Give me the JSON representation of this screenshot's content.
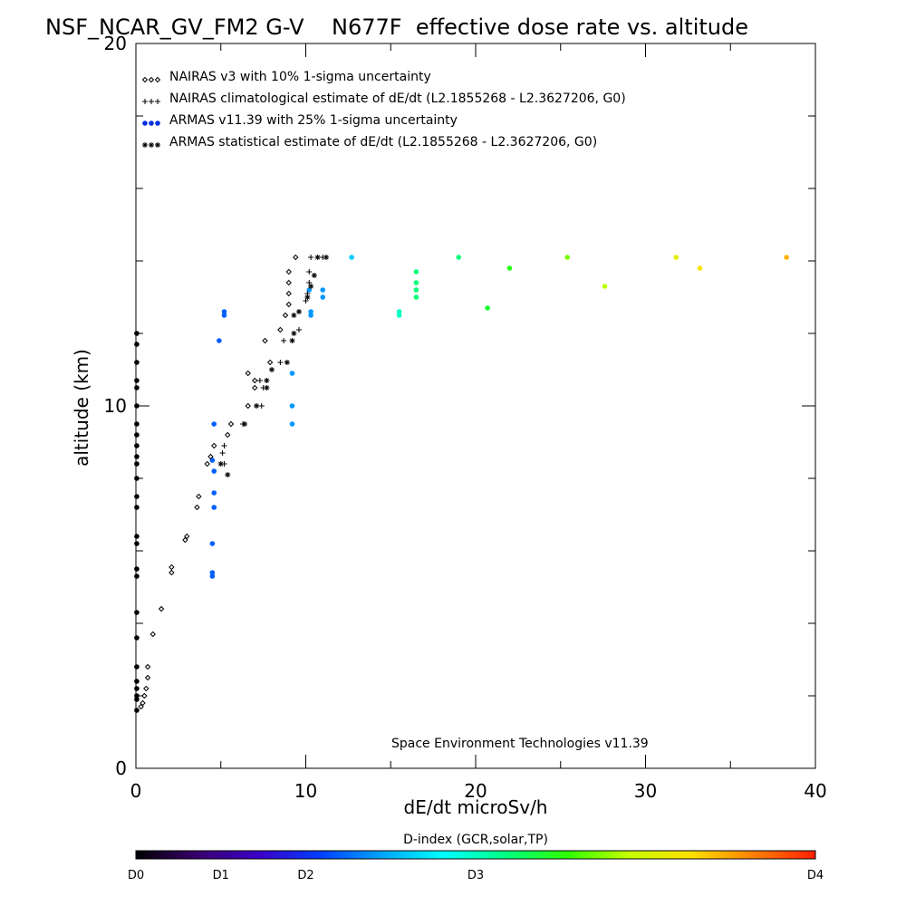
{
  "figure": {
    "title": "NSF_NCAR_GV_FM2 G-V    N677F  effective dose rate vs. altitude",
    "credit": "Space Environment Technologies v11.39",
    "colorbar_label": "D-index (GCR,solar,TP)",
    "colorbar_ticks": [
      "D0",
      "D1",
      "D2",
      "D3",
      "D4"
    ],
    "colorbar_colors": [
      "#000000",
      "#3a006e",
      "#3b00c8",
      "#0040ff",
      "#00a8ff",
      "#00ffff",
      "#00ff80",
      "#30ff00",
      "#c8ff00",
      "#ffe000",
      "#ff8000",
      "#ff2000"
    ]
  },
  "chart_data": {
    "type": "scatter",
    "xlabel": "dE/dt microSv/h",
    "ylabel": "altitude (km)",
    "xlim": [
      0,
      40
    ],
    "ylim": [
      0,
      20
    ],
    "xticks": [
      "0",
      "10",
      "20",
      "30",
      "40"
    ],
    "yticks": [
      "0",
      "10",
      "20"
    ],
    "legend_position": "top-left",
    "series": [
      {
        "name": "NAIRAS v3 with 10% 1-sigma uncertainty",
        "marker": "diamond",
        "color": "#000000",
        "points": [
          [
            0.3,
            1.7
          ],
          [
            0.4,
            1.8
          ],
          [
            0.5,
            2.0
          ],
          [
            0.6,
            2.2
          ],
          [
            0.7,
            2.5
          ],
          [
            0.7,
            2.8
          ],
          [
            1.0,
            3.7
          ],
          [
            1.5,
            4.4
          ],
          [
            2.1,
            5.4
          ],
          [
            2.1,
            5.55
          ],
          [
            2.9,
            6.3
          ],
          [
            3.0,
            6.4
          ],
          [
            3.6,
            7.2
          ],
          [
            3.7,
            7.5
          ],
          [
            4.2,
            8.4
          ],
          [
            4.4,
            8.6
          ],
          [
            4.6,
            8.9
          ],
          [
            5.4,
            9.2
          ],
          [
            5.6,
            9.5
          ],
          [
            6.6,
            10.0
          ],
          [
            7.0,
            10.5
          ],
          [
            7.0,
            10.7
          ],
          [
            6.6,
            10.9
          ],
          [
            7.9,
            11.2
          ],
          [
            7.6,
            11.8
          ],
          [
            8.5,
            12.1
          ],
          [
            8.8,
            12.5
          ],
          [
            9.0,
            12.8
          ],
          [
            9.0,
            13.1
          ],
          [
            9.0,
            13.4
          ],
          [
            9.0,
            13.7
          ],
          [
            9.4,
            14.1
          ]
        ]
      },
      {
        "name": "NAIRAS climatological estimate of dE/dt (L2.1855268 - L2.3627206, G0)",
        "marker": "plus",
        "color": "#000000",
        "points": [
          [
            5.1,
            8.7
          ],
          [
            5.2,
            8.9
          ],
          [
            5.2,
            8.4
          ],
          [
            6.3,
            9.5
          ],
          [
            7.4,
            10.0
          ],
          [
            7.5,
            10.5
          ],
          [
            7.3,
            10.7
          ],
          [
            8.5,
            11.2
          ],
          [
            8.7,
            11.8
          ],
          [
            9.6,
            12.1
          ],
          [
            9.6,
            12.6
          ],
          [
            10.0,
            12.9
          ],
          [
            10.1,
            13.1
          ],
          [
            10.2,
            13.4
          ],
          [
            10.2,
            13.7
          ],
          [
            10.3,
            14.1
          ],
          [
            11.0,
            14.1
          ]
        ]
      },
      {
        "name": "ARMAS v11.39 with 25% 1-sigma uncertainty",
        "marker": "dot",
        "color_by": "D-index",
        "points": [
          [
            0.05,
            1.6,
            0.0
          ],
          [
            0.05,
            1.9,
            0.0
          ],
          [
            0.05,
            2.0,
            0.0
          ],
          [
            0.05,
            2.2,
            0.0
          ],
          [
            0.05,
            2.4,
            0.0
          ],
          [
            0.05,
            2.8,
            0.0
          ],
          [
            0.05,
            3.6,
            0.0
          ],
          [
            0.05,
            4.3,
            0.0
          ],
          [
            0.05,
            5.3,
            0.0
          ],
          [
            0.05,
            5.5,
            0.0
          ],
          [
            0.05,
            6.2,
            0.0
          ],
          [
            0.05,
            6.4,
            0.0
          ],
          [
            0.05,
            7.2,
            0.0
          ],
          [
            0.05,
            7.5,
            0.0
          ],
          [
            0.05,
            8.0,
            0.0
          ],
          [
            0.05,
            8.4,
            0.0
          ],
          [
            0.05,
            8.6,
            0.0
          ],
          [
            0.05,
            8.9,
            0.0
          ],
          [
            0.05,
            9.2,
            0.0
          ],
          [
            0.05,
            9.5,
            0.0
          ],
          [
            0.05,
            10.0,
            0.0
          ],
          [
            0.05,
            10.5,
            0.0
          ],
          [
            0.05,
            10.7,
            0.0
          ],
          [
            0.05,
            11.2,
            0.0
          ],
          [
            0.05,
            11.7,
            0.0
          ],
          [
            0.05,
            12.0,
            0.0
          ],
          [
            4.5,
            5.3,
            0.3
          ],
          [
            4.5,
            5.4,
            0.3
          ],
          [
            4.5,
            6.2,
            0.3
          ],
          [
            4.6,
            7.2,
            0.3
          ],
          [
            4.6,
            7.6,
            0.3
          ],
          [
            4.6,
            8.2,
            0.3
          ],
          [
            4.5,
            8.5,
            0.3
          ],
          [
            4.6,
            9.5,
            0.3
          ],
          [
            4.9,
            11.8,
            0.3
          ],
          [
            5.2,
            12.6,
            0.3
          ],
          [
            5.2,
            12.5,
            0.3
          ],
          [
            9.2,
            9.5,
            0.35
          ],
          [
            9.2,
            10.0,
            0.35
          ],
          [
            9.2,
            10.9,
            0.35
          ],
          [
            10.3,
            12.5,
            0.35
          ],
          [
            10.3,
            12.6,
            0.35
          ],
          [
            10.2,
            13.2,
            0.35
          ],
          [
            11.0,
            13.0,
            0.35
          ],
          [
            11.0,
            13.2,
            0.35
          ],
          [
            12.7,
            14.1,
            0.4
          ],
          [
            15.5,
            12.5,
            0.5
          ],
          [
            15.5,
            12.6,
            0.5
          ],
          [
            16.5,
            13.0,
            0.55
          ],
          [
            16.5,
            13.2,
            0.55
          ],
          [
            16.5,
            13.4,
            0.55
          ],
          [
            16.5,
            13.7,
            0.55
          ],
          [
            19.0,
            14.1,
            0.55
          ],
          [
            20.7,
            12.7,
            0.6
          ],
          [
            22.0,
            13.8,
            0.62
          ],
          [
            25.4,
            14.1,
            0.68
          ],
          [
            27.6,
            13.3,
            0.72
          ],
          [
            31.8,
            14.1,
            0.78
          ],
          [
            33.2,
            13.8,
            0.8
          ],
          [
            38.3,
            14.1,
            0.86
          ]
        ]
      },
      {
        "name": "ARMAS statistical estimate of dE/dt (L2.1855268 - L2.3627206, G0)",
        "marker": "asterisk",
        "color": "#000000",
        "points": [
          [
            5.4,
            8.1
          ],
          [
            5.0,
            8.4
          ],
          [
            6.4,
            9.5
          ],
          [
            7.1,
            10.0
          ],
          [
            7.7,
            10.5
          ],
          [
            7.7,
            10.7
          ],
          [
            8.0,
            11.0
          ],
          [
            8.9,
            11.2
          ],
          [
            9.2,
            11.8
          ],
          [
            9.3,
            12.0
          ],
          [
            9.3,
            12.5
          ],
          [
            9.6,
            12.6
          ],
          [
            10.1,
            13.0
          ],
          [
            10.3,
            13.3
          ],
          [
            10.5,
            13.6
          ],
          [
            10.7,
            14.1
          ],
          [
            11.2,
            14.1
          ]
        ]
      }
    ]
  }
}
